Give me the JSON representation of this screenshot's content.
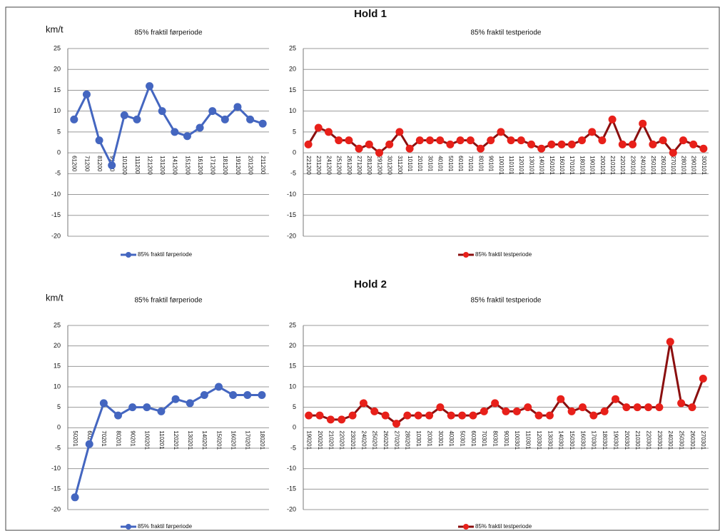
{
  "sections": [
    {
      "title": "Hold 1",
      "unit_label": "km/t"
    },
    {
      "title": "Hold 2",
      "unit_label": "km/t"
    }
  ],
  "chart_data": [
    {
      "type": "line",
      "title": "85% fraktil førperiode",
      "categories": [
        "61200",
        "71200",
        "81200",
        "91200",
        "101200",
        "111200",
        "121200",
        "131200",
        "141200",
        "151200",
        "161200",
        "171200",
        "181200",
        "191200",
        "201200",
        "211200"
      ],
      "series": [
        {
          "name": "85% fraktil førperiode",
          "color": "#4466c0",
          "values": [
            8,
            14,
            3,
            -3,
            9,
            8,
            16,
            10,
            5,
            4,
            6,
            10,
            8,
            11,
            8,
            7
          ]
        }
      ],
      "ylim": [
        -20,
        25
      ],
      "yticks": [
        -20,
        -15,
        -10,
        -5,
        0,
        5,
        10,
        15,
        20,
        25
      ],
      "grid": true,
      "legend": "bottom"
    },
    {
      "type": "line",
      "title": "85% fraktil testperiode",
      "categories": [
        "221200",
        "231200",
        "241200",
        "251200",
        "261200",
        "271200",
        "281200",
        "291200",
        "301200",
        "311200",
        "10101",
        "20101",
        "30101",
        "40101",
        "50101",
        "60101",
        "70101",
        "80101",
        "90101",
        "100101",
        "110101",
        "120101",
        "130101",
        "140101",
        "150101",
        "160101",
        "170101",
        "180101",
        "190101",
        "200101",
        "210101",
        "220101",
        "230101",
        "240101",
        "250101",
        "260101",
        "270101",
        "280101",
        "290101",
        "300101"
      ],
      "series": [
        {
          "name": "85% fraktil testperiode",
          "color": "#e8201a",
          "line_color": "#8b0f0f",
          "values": [
            2,
            6,
            5,
            3,
            3,
            1,
            2,
            0,
            2,
            5,
            1,
            3,
            3,
            3,
            2,
            3,
            3,
            1,
            3,
            5,
            3,
            3,
            2,
            1,
            2,
            2,
            2,
            3,
            5,
            3,
            8,
            2,
            2,
            7,
            2,
            3,
            0,
            3,
            2,
            1
          ]
        }
      ],
      "ylim": [
        -20,
        25
      ],
      "yticks": [
        -20,
        -15,
        -10,
        -5,
        0,
        5,
        10,
        15,
        20,
        25
      ],
      "grid": true,
      "legend": "bottom"
    },
    {
      "type": "line",
      "title": "85% fraktil førperiode",
      "categories": [
        "50201",
        "60201",
        "70201",
        "80201",
        "90201",
        "100201",
        "110201",
        "120201",
        "130201",
        "140201",
        "150201",
        "160201",
        "170201",
        "180201"
      ],
      "series": [
        {
          "name": "85% fraktil førperiode",
          "color": "#4466c0",
          "values": [
            -17,
            -4,
            6,
            3,
            5,
            5,
            4,
            7,
            6,
            8,
            10,
            8,
            8,
            8
          ]
        }
      ],
      "ylim": [
        -20,
        25
      ],
      "yticks": [
        -20,
        -15,
        -10,
        -5,
        0,
        5,
        10,
        15,
        20,
        25
      ],
      "grid": true,
      "legend": "bottom"
    },
    {
      "type": "line",
      "title": "85% fraktil testperiode",
      "categories": [
        "190201",
        "200201",
        "210201",
        "220201",
        "230201",
        "240201",
        "250201",
        "260201",
        "270201",
        "280201",
        "10301",
        "20301",
        "30301",
        "40301",
        "50301",
        "60301",
        "70301",
        "80301",
        "90301",
        "100301",
        "110301",
        "120301",
        "130301",
        "140301",
        "150301",
        "160301",
        "170301",
        "180301",
        "190301",
        "200301",
        "210301",
        "220301",
        "230301",
        "240301",
        "250301",
        "260301",
        "270301"
      ],
      "series": [
        {
          "name": "85% fraktil testperiode",
          "color": "#e8201a",
          "line_color": "#8b0f0f",
          "values": [
            3,
            3,
            2,
            2,
            3,
            6,
            4,
            3,
            1,
            3,
            3,
            3,
            5,
            3,
            3,
            3,
            4,
            6,
            4,
            4,
            5,
            3,
            3,
            7,
            4,
            5,
            3,
            4,
            7,
            5,
            5,
            5,
            5,
            21,
            6,
            5,
            12
          ]
        }
      ],
      "ylim": [
        -20,
        25
      ],
      "yticks": [
        -20,
        -15,
        -10,
        -5,
        0,
        5,
        10,
        15,
        20,
        25
      ],
      "grid": true,
      "legend": "bottom"
    }
  ]
}
